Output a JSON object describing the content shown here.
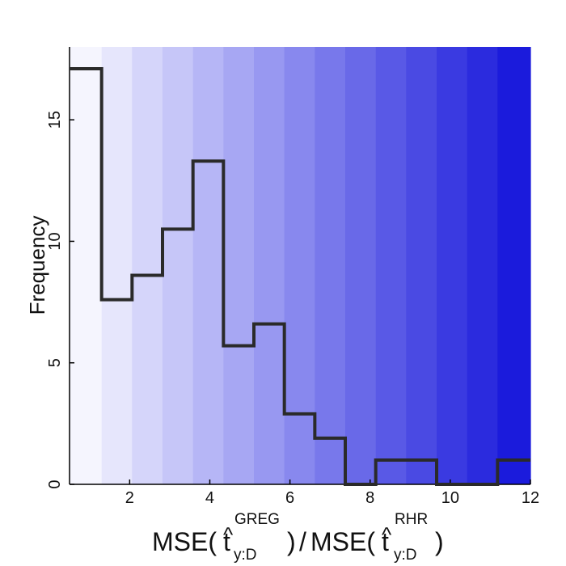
{
  "chart_data": {
    "type": "histogram",
    "ylabel": "Frequency",
    "xlim": [
      0.5,
      12
    ],
    "ylim": [
      0,
      18
    ],
    "xticks": [
      2,
      4,
      6,
      8,
      10,
      12
    ],
    "yticks": [
      0,
      5,
      10,
      15
    ],
    "bin_edges": [
      0.5,
      1.3,
      2.06,
      2.82,
      3.58,
      4.34,
      5.1,
      5.86,
      6.62,
      7.38,
      8.14,
      8.9,
      9.66,
      10.42,
      11.18,
      12.0
    ],
    "counts": [
      17.1,
      7.6,
      8.6,
      10.5,
      13.3,
      5.7,
      6.6,
      2.9,
      1.9,
      0,
      1.0,
      1.0,
      0,
      0,
      1.0
    ],
    "bin_colors": [
      "#f5f5fe",
      "#e6e6fc",
      "#d5d5fa",
      "#c6c6f8",
      "#b6b6f6",
      "#a7a7f3",
      "#9898f1",
      "#8888ee",
      "#7878eb",
      "#6969e8",
      "#5959e6",
      "#4a4ae3",
      "#3a3ae1",
      "#2b2bde",
      "#1b1bdc"
    ],
    "line_color": "#2a2a2a",
    "xlabel": {
      "lhs_func": "MSE(",
      "lhs_var": "t",
      "lhs_hat": "^",
      "lhs_sup": "GREG",
      "lhs_sub": "y:D",
      "lhs_close": ")",
      "divider": "/",
      "rhs_func": "MSE(",
      "rhs_var": "t",
      "rhs_hat": "^",
      "rhs_sup": "RHR",
      "rhs_sub": "y:D",
      "rhs_close": ")"
    }
  }
}
